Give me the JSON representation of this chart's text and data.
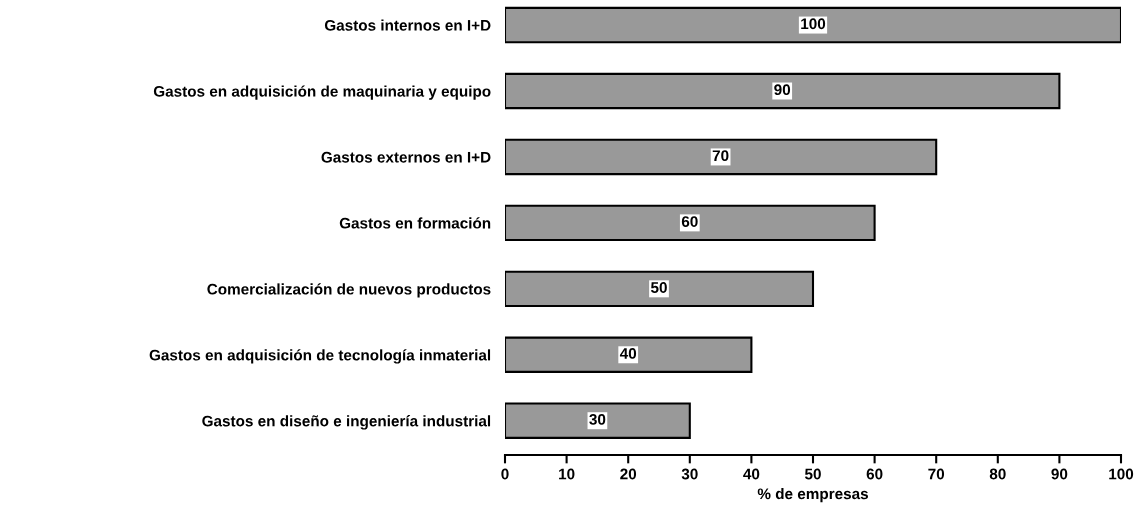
{
  "chart_data": {
    "type": "bar",
    "orientation": "horizontal",
    "xlabel": "% de empresas",
    "categories": [
      "Gastos internos en I+D",
      "Gastos en adquisición de maquinaria y equipo",
      "Gastos externos en I+D",
      "Gastos en formación",
      "Comercialización de nuevos productos",
      "Gastos en adquisición de tecnología inmaterial",
      "Gastos en diseño e ingeniería industrial"
    ],
    "values": [
      100,
      90,
      70,
      60,
      50,
      40,
      30
    ],
    "color": "#999999",
    "data_labels": true,
    "grid": false,
    "xlim": [
      0,
      100
    ],
    "xticks": [
      0,
      10,
      20,
      30,
      40,
      50,
      60,
      70,
      80,
      90,
      100
    ]
  }
}
